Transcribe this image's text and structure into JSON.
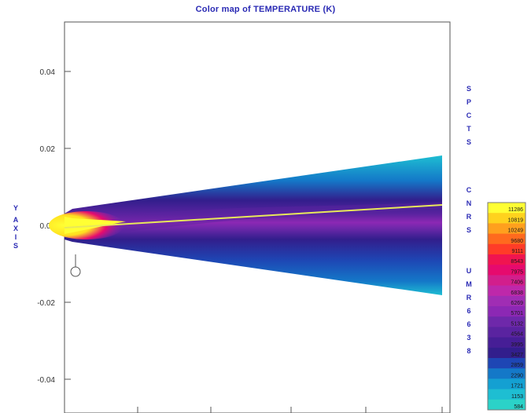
{
  "chart_data": {
    "type": "heatmap",
    "title": "Color map of TEMPERATURE (K)",
    "ylabel": "Y AXIS",
    "y_ticks": [
      "0.04",
      "0.02",
      "0.00",
      "-0.02",
      "-0.04"
    ],
    "y_tick_values": [
      0.04,
      0.02,
      0.0,
      -0.02,
      -0.04
    ],
    "ylim": [
      -0.05,
      0.05
    ],
    "side_text_1": "SPCTS",
    "side_text_2": "CNRS",
    "side_text_3": "UMR6638",
    "colorbar": {
      "unit": "K",
      "labels": [
        "11286",
        "10819",
        "10249",
        "9680",
        "9111",
        "8543",
        "7975",
        "7406",
        "6838",
        "6269",
        "5701",
        "5132",
        "4564",
        "3995",
        "3427",
        "2859",
        "2290",
        "1721",
        "1153",
        "584"
      ],
      "colors": [
        "#ffff33",
        "#ffd21e",
        "#ffa01e",
        "#ff6a1e",
        "#ff3c28",
        "#f01450",
        "#e60a6e",
        "#d21e8c",
        "#be28aa",
        "#a02db4",
        "#8c28b4",
        "#6e28aa",
        "#5a23a0",
        "#461e96",
        "#321e8c",
        "#1e46b4",
        "#1478c8",
        "#14a0d2",
        "#1ebed2",
        "#2bd2c8"
      ]
    },
    "jet": {
      "core_temperature_K": 11286,
      "edge_temperature_K": 1153,
      "centerline_temperature_K": 10819
    },
    "grid": false,
    "legend_position": "right"
  }
}
